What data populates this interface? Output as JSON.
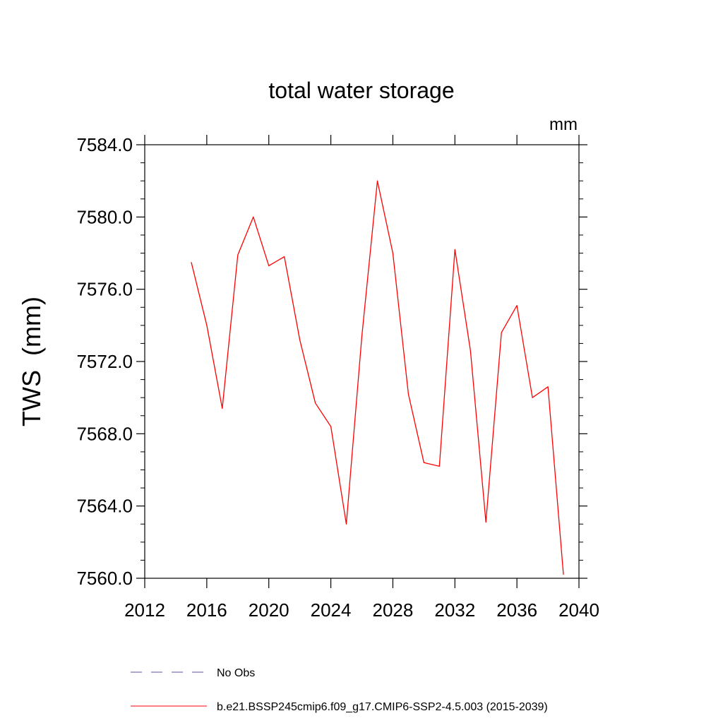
{
  "chart_data": {
    "type": "line",
    "title": "total water storage",
    "units_label": "mm",
    "ylabel": "TWS  (mm)",
    "xlim": [
      2012,
      2040
    ],
    "ylim": [
      7560,
      7584
    ],
    "x_ticks": [
      2012,
      2016,
      2020,
      2024,
      2028,
      2032,
      2036,
      2040
    ],
    "x_tick_labels": [
      "2012",
      "2016",
      "2020",
      "2024",
      "2028",
      "2032",
      "2036",
      "2040"
    ],
    "y_ticks": [
      7560,
      7564,
      7568,
      7572,
      7576,
      7580,
      7584
    ],
    "y_tick_labels": [
      "7560.0",
      "7564.0",
      "7568.0",
      "7572.0",
      "7576.0",
      "7580.0",
      "7584.0"
    ],
    "grid": false,
    "legend_position": "bottom",
    "series": [
      {
        "name": "b.e21.BSSP245cmip6.f09_g17.CMIP6-SSP2-4.5.003 (2015-2039)",
        "color": "#ff0000",
        "dash": "solid",
        "x": [
          2015,
          2016,
          2017,
          2018,
          2019,
          2020,
          2021,
          2022,
          2023,
          2024,
          2025,
          2026,
          2027,
          2028,
          2029,
          2030,
          2031,
          2032,
          2033,
          2034,
          2035,
          2036,
          2037,
          2038,
          2039
        ],
        "y": [
          7577.5,
          7574.0,
          7569.4,
          7577.9,
          7580.0,
          7577.3,
          7577.8,
          7573.2,
          7569.7,
          7568.4,
          7563.0,
          7573.4,
          7582.0,
          7578.0,
          7570.2,
          7566.4,
          7566.2,
          7578.2,
          7572.6,
          7563.1,
          7573.6,
          7575.1,
          7570.0,
          7570.6,
          7560.2
        ]
      }
    ],
    "legend": [
      {
        "label": "No Obs",
        "color": "#5555aa",
        "dash": "dashed"
      },
      {
        "label": "b.e21.BSSP245cmip6.f09_g17.CMIP6-SSP2-4.5.003 (2015-2039)",
        "color": "#ff0000",
        "dash": "solid"
      }
    ]
  }
}
